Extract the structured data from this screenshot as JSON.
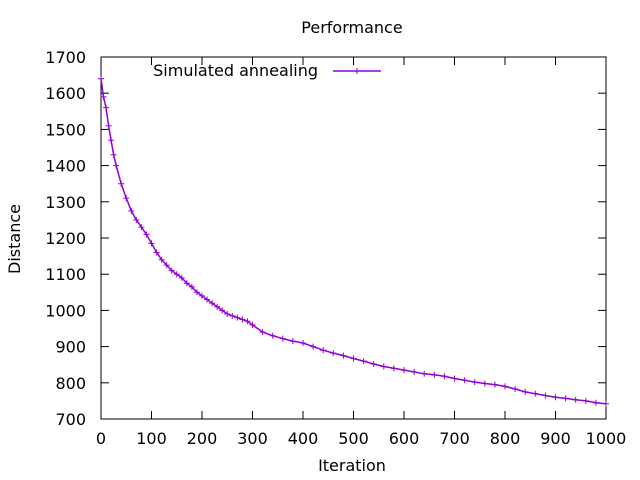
{
  "chart_data": {
    "type": "line",
    "title": "Performance",
    "xlabel": "Iteration",
    "ylabel": "Distance",
    "xlim": [
      0,
      1000
    ],
    "ylim": [
      700,
      1700
    ],
    "xticks": [
      0,
      100,
      200,
      300,
      400,
      500,
      600,
      700,
      800,
      900,
      1000
    ],
    "yticks": [
      700,
      800,
      900,
      1000,
      1100,
      1200,
      1300,
      1400,
      1500,
      1600,
      1700
    ],
    "xtick_labels": [
      "0",
      "100",
      "200",
      "300",
      "400",
      "500",
      "600",
      "700",
      "800",
      "900",
      "1000"
    ],
    "ytick_labels": [
      "700",
      "800",
      "900",
      "1000",
      "1100",
      "1200",
      "1300",
      "1400",
      "1500",
      "1600",
      "1700"
    ],
    "grid": false,
    "legend_position": "top-left",
    "series": [
      {
        "name": "Simulated annealing",
        "color": "#9400d3",
        "marker": "plus",
        "x": [
          0,
          5,
          10,
          15,
          20,
          25,
          30,
          40,
          50,
          60,
          70,
          80,
          90,
          100,
          110,
          120,
          130,
          140,
          150,
          160,
          170,
          180,
          190,
          200,
          210,
          220,
          230,
          240,
          250,
          260,
          270,
          280,
          290,
          300,
          320,
          340,
          360,
          380,
          400,
          420,
          440,
          460,
          480,
          500,
          520,
          540,
          560,
          580,
          600,
          620,
          640,
          660,
          680,
          700,
          720,
          740,
          760,
          780,
          800,
          820,
          840,
          860,
          880,
          900,
          920,
          940,
          960,
          980,
          1000
        ],
        "y": [
          1640,
          1590,
          1560,
          1510,
          1470,
          1430,
          1400,
          1350,
          1310,
          1275,
          1250,
          1230,
          1210,
          1185,
          1160,
          1140,
          1125,
          1110,
          1100,
          1090,
          1075,
          1065,
          1050,
          1040,
          1030,
          1020,
          1010,
          1000,
          990,
          985,
          980,
          975,
          970,
          960,
          940,
          930,
          922,
          915,
          910,
          900,
          890,
          882,
          875,
          867,
          860,
          852,
          845,
          840,
          835,
          830,
          825,
          822,
          818,
          812,
          807,
          802,
          798,
          795,
          790,
          783,
          775,
          770,
          765,
          760,
          757,
          753,
          750,
          745,
          742
        ]
      }
    ]
  }
}
